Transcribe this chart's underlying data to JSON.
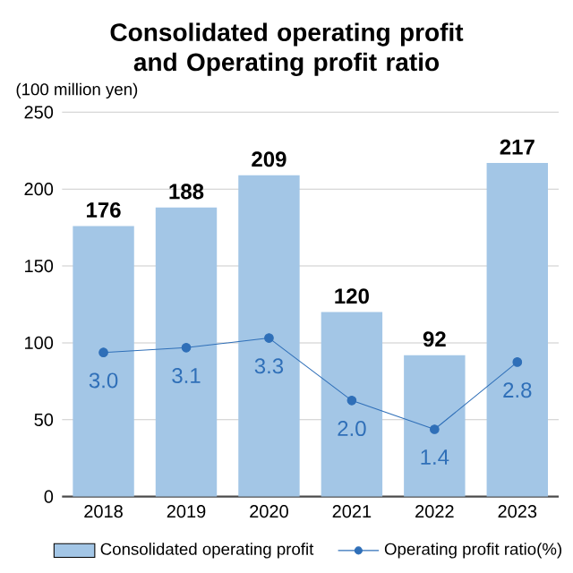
{
  "chart_data": {
    "type": "bar",
    "title": "Consolidated operating profit and Operating profit ratio",
    "ylabel": "(100 million yen)",
    "categories": [
      "2018",
      "2019",
      "2020",
      "2021",
      "2022",
      "2023"
    ],
    "series": [
      {
        "name": "Consolidated operating profit",
        "color": "#a3c6e6",
        "values": [
          176,
          188,
          209,
          120,
          92,
          217
        ],
        "value_labels": [
          "176",
          "188",
          "209",
          "120",
          "92",
          "217"
        ]
      },
      {
        "name": "Operating profit ratio(%)",
        "type": "line",
        "axis": "y2",
        "color": "#2f6fb8",
        "marker": "circle",
        "values": [
          3.0,
          3.1,
          3.3,
          2.0,
          1.4,
          2.8
        ],
        "value_labels": [
          "3.0",
          "3.1",
          "3.3",
          "2.0",
          "1.4",
          "2.8"
        ]
      }
    ],
    "ylim": [
      0,
      250
    ],
    "yticks": [
      0,
      50,
      100,
      150,
      200,
      250
    ],
    "y2lim": [
      0,
      8
    ],
    "grid": "y",
    "legend": "bottom"
  }
}
